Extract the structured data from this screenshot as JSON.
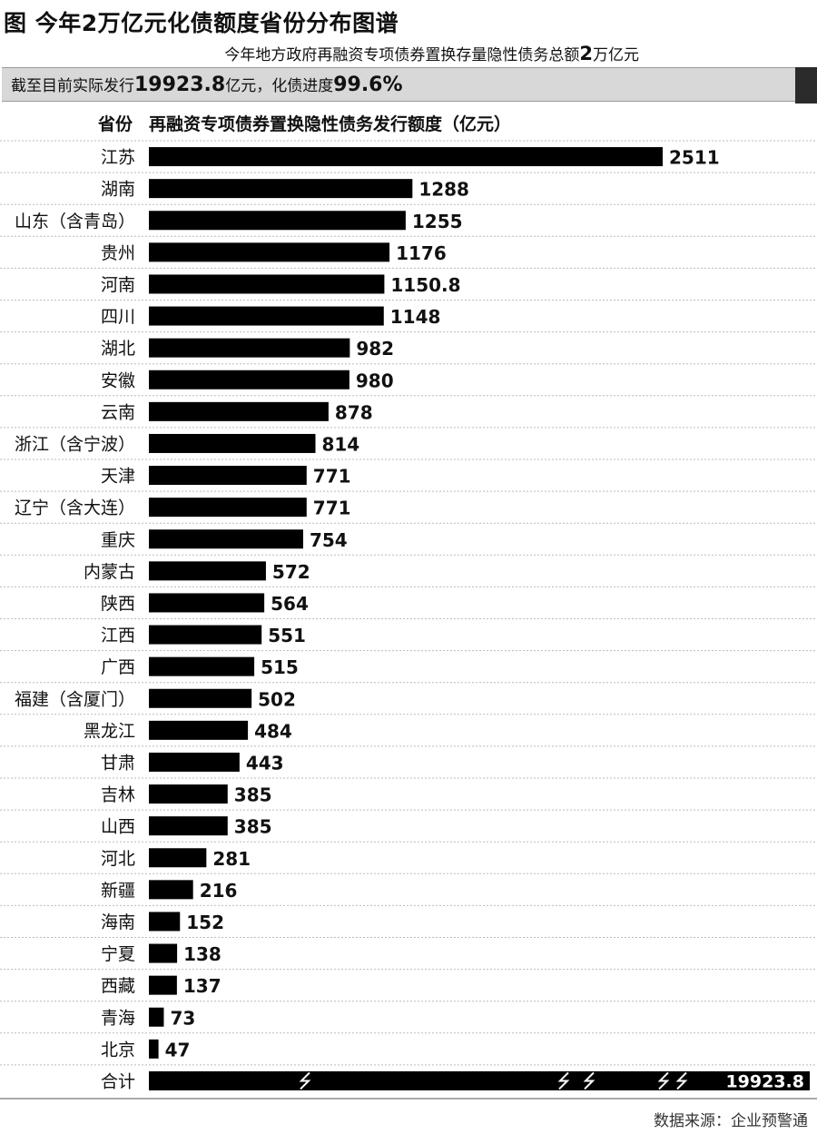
{
  "header": {
    "title": "图 今年2万亿元化债额度省份分布图谱",
    "subtitle_prefix": "今年地方政府再融资专项债券置换存量隐性债务总额",
    "subtitle_big": "2",
    "subtitle_suffix": "万亿元",
    "banner_prefix": "截至目前实际发行",
    "banner_issued": "19923.8",
    "banner_mid": "亿元，化债进度",
    "banner_progress": "99.6%"
  },
  "columns": {
    "province": "省份",
    "amount": "再融资专项债券置换隐性债务发行额度（亿元）"
  },
  "chart_data": {
    "type": "bar",
    "orientation": "horizontal",
    "unit": "亿元",
    "categories": [
      "江苏",
      "湖南",
      "山东（含青岛）",
      "贵州",
      "河南",
      "四川",
      "湖北",
      "安徽",
      "云南",
      "浙江（含宁波）",
      "天津",
      "辽宁（含大连）",
      "重庆",
      "内蒙古",
      "陕西",
      "江西",
      "广西",
      "福建（含厦门）",
      "黑龙江",
      "甘肃",
      "吉林",
      "山西",
      "河北",
      "新疆",
      "海南",
      "宁夏",
      "西藏",
      "青海",
      "北京"
    ],
    "values": [
      2511,
      1288,
      1255,
      1176,
      1150.8,
      1148,
      982,
      980,
      878,
      814,
      771,
      771,
      754,
      572,
      564,
      551,
      515,
      502,
      484,
      443,
      385,
      385,
      281,
      216,
      152,
      138,
      137,
      73,
      47
    ],
    "value_labels": [
      "2511",
      "1288",
      "1255",
      "1176",
      "1150.8",
      "1148",
      "982",
      "980",
      "878",
      "814",
      "771",
      "771",
      "754",
      "572",
      "564",
      "551",
      "515",
      "502",
      "484",
      "443",
      "385",
      "385",
      "281",
      "216",
      "152",
      "138",
      "137",
      "73",
      "47"
    ],
    "total": {
      "label": "合计",
      "value": 19923.8,
      "value_label": "19923.8",
      "axis_break": true
    },
    "xlim": [
      0,
      2511
    ],
    "grid": "dotted row separators",
    "colors": {
      "bar": "#000000",
      "text": "#111111",
      "separator": "#bbbbbb"
    }
  },
  "footer": {
    "source": "数据来源：企业预警通"
  }
}
